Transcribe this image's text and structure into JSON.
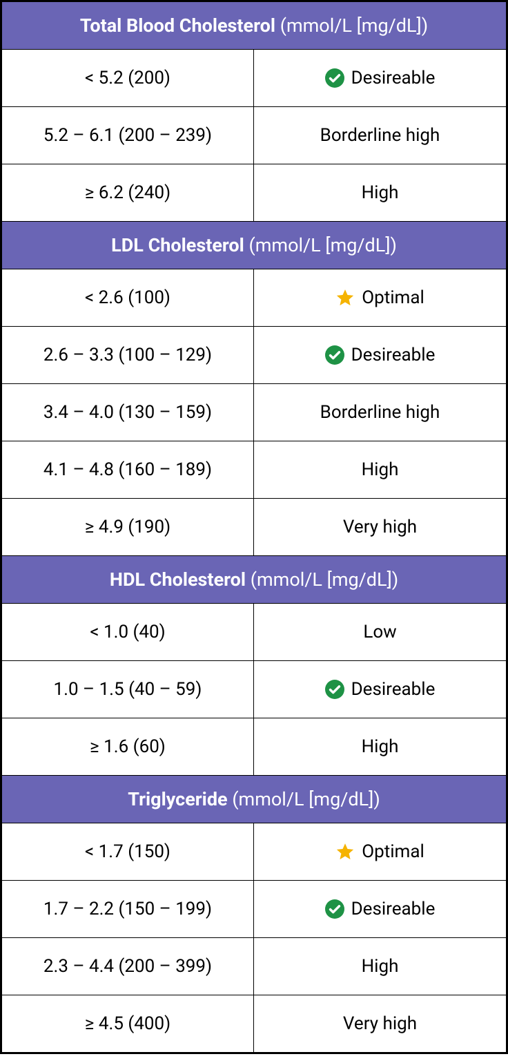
{
  "colors": {
    "header_bg": "#6A65B5",
    "header_text": "#ffffff",
    "border": "#000000",
    "cell_bg": "#ffffff",
    "cell_text": "#000000",
    "check_bg": "#1E9245",
    "check_fg": "#ffffff",
    "star": "#F5B301"
  },
  "unit_suffix": "(mmol/L [mg/dL])",
  "sections": [
    {
      "title_bold": "Total Blood Cholesterol",
      "rows": [
        {
          "range": "< 5.2 (200)",
          "label": "Desireable",
          "icon": "check"
        },
        {
          "range": "5.2 – 6.1 (200 – 239)",
          "label": "Borderline high",
          "icon": null
        },
        {
          "range": "≥ 6.2 (240)",
          "label": "High",
          "icon": null
        }
      ]
    },
    {
      "title_bold": "LDL Cholesterol",
      "rows": [
        {
          "range": "< 2.6 (100)",
          "label": "Optimal",
          "icon": "star"
        },
        {
          "range": "2.6 – 3.3 (100 – 129)",
          "label": "Desireable",
          "icon": "check"
        },
        {
          "range": "3.4 – 4.0 (130 – 159)",
          "label": "Borderline high",
          "icon": null
        },
        {
          "range": "4.1 – 4.8 (160 – 189)",
          "label": "High",
          "icon": null
        },
        {
          "range": "≥ 4.9 (190)",
          "label": "Very high",
          "icon": null
        }
      ]
    },
    {
      "title_bold": "HDL Cholesterol",
      "rows": [
        {
          "range": "< 1.0 (40)",
          "label": "Low",
          "icon": null
        },
        {
          "range": "1.0 – 1.5 (40 – 59)",
          "label": "Desireable",
          "icon": "check"
        },
        {
          "range": "≥ 1.6 (60)",
          "label": "High",
          "icon": null
        }
      ]
    },
    {
      "title_bold": "Triglyceride",
      "rows": [
        {
          "range": "< 1.7 (150)",
          "label": "Optimal",
          "icon": "star"
        },
        {
          "range": "1.7 – 2.2 (150 – 199)",
          "label": "Desireable",
          "icon": "check"
        },
        {
          "range": "2.3 – 4.4 (200 – 399)",
          "label": "High",
          "icon": null
        },
        {
          "range": "≥ 4.5 (400)",
          "label": "Very high",
          "icon": null
        }
      ]
    }
  ]
}
